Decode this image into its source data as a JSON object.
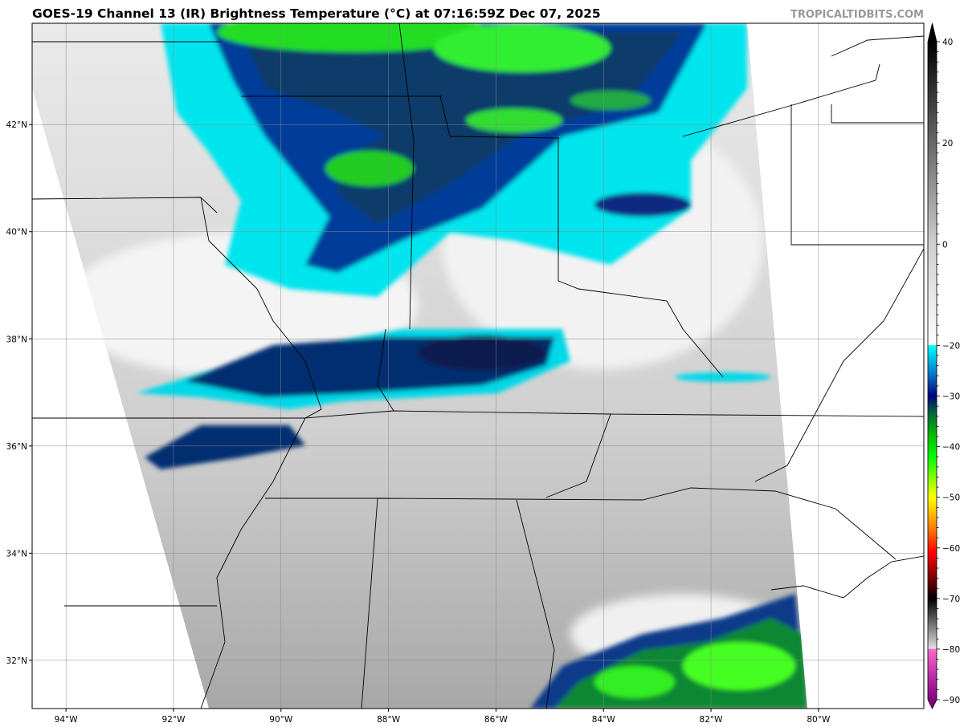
{
  "title": "GOES-19 Channel 13 (IR) Brightness Temperature (°C) at 07:16:59Z Dec 07, 2025",
  "brand": "TROPICALTIDBITS.COM",
  "map": {
    "extent": {
      "lon_min": -94.63,
      "lon_max": -78.04,
      "lat_min": 31.1,
      "lat_max": 43.89
    },
    "lon_ticks": [
      -94,
      -92,
      -90,
      -88,
      -86,
      -84,
      -82,
      -80
    ],
    "lon_labels": [
      "94°W",
      "92°W",
      "90°W",
      "88°W",
      "86°W",
      "84°W",
      "82°W",
      "80°W"
    ],
    "lat_ticks": [
      32,
      34,
      36,
      38,
      40,
      42
    ],
    "lat_labels": [
      "32°N",
      "34°N",
      "36°N",
      "38°N",
      "40°N",
      "42°N"
    ],
    "grid": true
  },
  "colorbar": {
    "range": [
      -90,
      40
    ],
    "ticks": [
      40,
      20,
      0,
      -20,
      -30,
      -40,
      -50,
      -60,
      -70,
      -80,
      -90
    ],
    "tick_labels": [
      "40",
      "20",
      "0",
      "−20",
      "−30",
      "−40",
      "−50",
      "−60",
      "−70",
      "−80",
      "−90"
    ],
    "stops": [
      {
        "v": 40,
        "c": "#000000"
      },
      {
        "v": 0,
        "c": "#cfcfcf"
      },
      {
        "v": -19.9,
        "c": "#ffffff"
      },
      {
        "v": -20,
        "c": "#00ffff"
      },
      {
        "v": -26,
        "c": "#0070c0"
      },
      {
        "v": -30,
        "c": "#000080"
      },
      {
        "v": -33,
        "c": "#006040"
      },
      {
        "v": -38,
        "c": "#00c000"
      },
      {
        "v": -42,
        "c": "#00ff00"
      },
      {
        "v": -50,
        "c": "#ffff00"
      },
      {
        "v": -56,
        "c": "#ff8000"
      },
      {
        "v": -61,
        "c": "#ff0000"
      },
      {
        "v": -67,
        "c": "#600000"
      },
      {
        "v": -70,
        "c": "#000000"
      },
      {
        "v": -79.9,
        "c": "#e0e0e0"
      },
      {
        "v": -80,
        "c": "#ff66cc"
      },
      {
        "v": -90,
        "c": "#800080"
      }
    ]
  }
}
